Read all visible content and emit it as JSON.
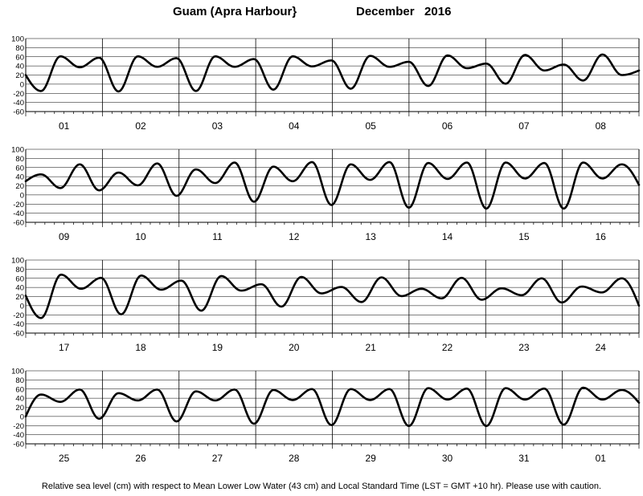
{
  "header": {
    "location": "Guam (Apra Harbour}",
    "period": "December   2016"
  },
  "footer": {
    "note": "Relative sea level (cm) with respect to Mean Lower Low Water (43 cm) and Local Standard Time (LST = GMT +10 hr). Please use with caution."
  },
  "chart_data": {
    "type": "line",
    "title": "Guam (Apra Harbour}   December   2016",
    "ylabel": "",
    "xlabel": "",
    "ylim": [
      -60,
      100
    ],
    "yticks": [
      -60,
      -40,
      -20,
      0,
      20,
      40,
      60,
      80,
      100
    ],
    "grid": true,
    "series_color": "#000000",
    "panels": [
      {
        "days": [
          "01",
          "02",
          "03",
          "04",
          "05",
          "06",
          "07",
          "08"
        ],
        "start": 20,
        "end": 30,
        "extrema": [
          -15,
          61,
          37,
          58,
          -16,
          61,
          38,
          57,
          -15,
          61,
          38,
          55,
          -12,
          61,
          39,
          52,
          -10,
          62,
          38,
          49,
          -4,
          63,
          35,
          45,
          1,
          64,
          30,
          43,
          8,
          65,
          20
        ]
      },
      {
        "days": [
          "09",
          "10",
          "11",
          "12",
          "13",
          "14",
          "15",
          "16"
        ],
        "start": 30,
        "end": 22,
        "extrema": [
          45,
          15,
          67,
          10,
          49,
          21,
          69,
          -2,
          56,
          26,
          71,
          -15,
          62,
          30,
          72,
          -22,
          67,
          33,
          72,
          -28,
          70,
          35,
          71,
          -30,
          71,
          36,
          70,
          -30,
          71,
          36,
          67
        ]
      },
      {
        "days": [
          "17",
          "18",
          "19",
          "20",
          "21",
          "22",
          "23",
          "24"
        ],
        "start": 22,
        "end": 0,
        "extrema": [
          -27,
          68,
          37,
          61,
          -19,
          66,
          35,
          55,
          -11,
          65,
          33,
          47,
          -2,
          63,
          27,
          41,
          8,
          62,
          21,
          37,
          16,
          61,
          13,
          38,
          23,
          60,
          7,
          42,
          29,
          60
        ]
      },
      {
        "days": [
          "25",
          "26",
          "27",
          "28",
          "29",
          "30",
          "31",
          "01"
        ],
        "start": 0,
        "end": 30,
        "extrema": [
          48,
          32,
          59,
          -5,
          51,
          35,
          59,
          -11,
          55,
          35,
          59,
          -16,
          58,
          36,
          60,
          -19,
          60,
          36,
          60,
          -21,
          62,
          37,
          61,
          -21,
          62,
          37,
          61,
          -18,
          63,
          37,
          58
        ]
      }
    ]
  }
}
